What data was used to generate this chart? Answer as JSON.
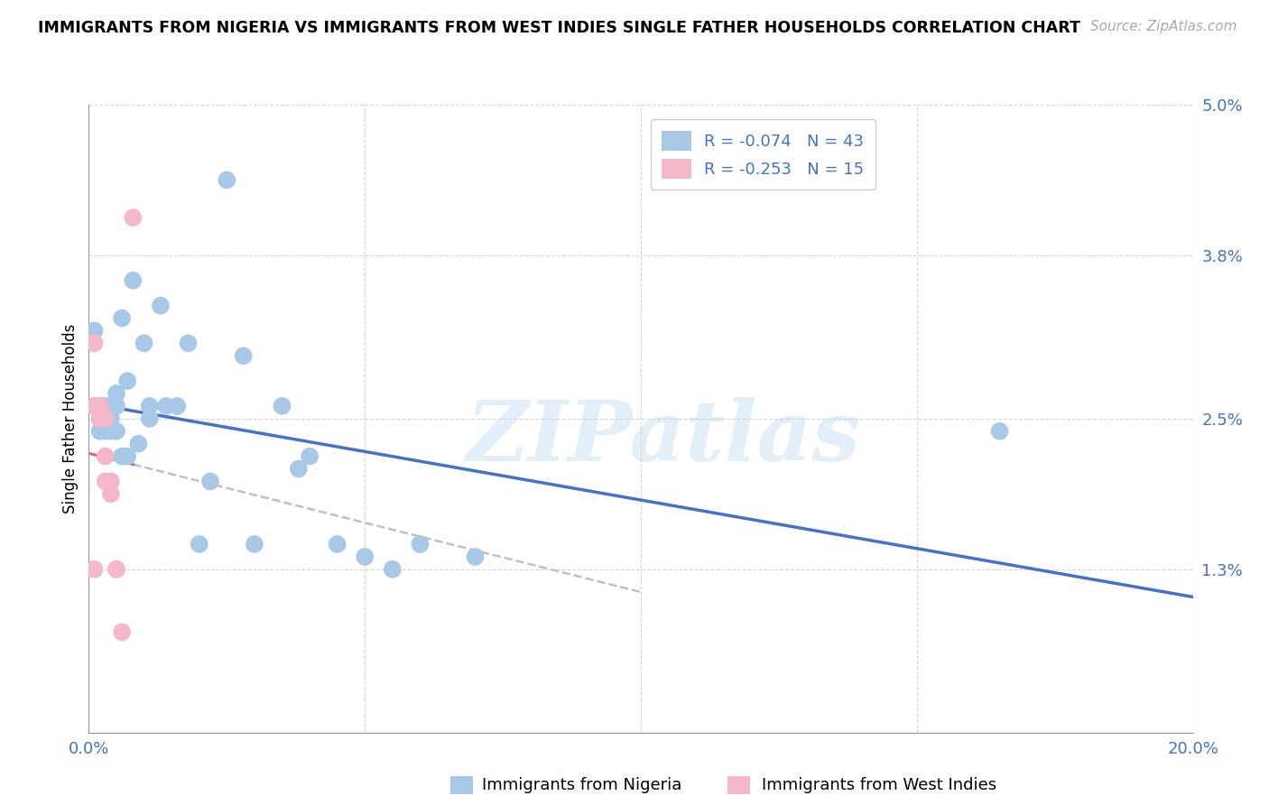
{
  "title": "IMMIGRANTS FROM NIGERIA VS IMMIGRANTS FROM WEST INDIES SINGLE FATHER HOUSEHOLDS CORRELATION CHART",
  "source": "Source: ZipAtlas.com",
  "ylabel": "Single Father Households",
  "xlabel": "",
  "xlim": [
    0.0,
    0.2
  ],
  "ylim": [
    0.0,
    0.05
  ],
  "yticks": [
    0.0,
    0.013,
    0.025,
    0.038,
    0.05
  ],
  "ytick_labels": [
    "",
    "1.3%",
    "2.5%",
    "3.8%",
    "5.0%"
  ],
  "xticks": [
    0.0,
    0.05,
    0.1,
    0.15,
    0.2
  ],
  "xtick_labels": [
    "0.0%",
    "",
    "",
    "",
    "20.0%"
  ],
  "nigeria_R": -0.074,
  "nigeria_N": 43,
  "westindies_R": -0.253,
  "westindies_N": 15,
  "nigeria_color": "#a8c8e8",
  "westindies_color": "#f4b8c8",
  "nigeria_line_color": "#4472c4",
  "westindies_line_color": "#e06080",
  "watermark": "ZIPatlas",
  "nigeria_x": [
    0.001,
    0.001,
    0.002,
    0.002,
    0.002,
    0.002,
    0.003,
    0.003,
    0.003,
    0.003,
    0.004,
    0.004,
    0.004,
    0.005,
    0.005,
    0.005,
    0.006,
    0.006,
    0.007,
    0.007,
    0.008,
    0.009,
    0.01,
    0.011,
    0.011,
    0.013,
    0.014,
    0.016,
    0.018,
    0.02,
    0.022,
    0.025,
    0.028,
    0.03,
    0.035,
    0.038,
    0.04,
    0.045,
    0.05,
    0.055,
    0.06,
    0.07,
    0.165
  ],
  "nigeria_y": [
    0.032,
    0.026,
    0.026,
    0.025,
    0.025,
    0.024,
    0.026,
    0.025,
    0.025,
    0.024,
    0.026,
    0.025,
    0.024,
    0.027,
    0.026,
    0.024,
    0.033,
    0.022,
    0.028,
    0.022,
    0.036,
    0.023,
    0.031,
    0.026,
    0.025,
    0.034,
    0.026,
    0.026,
    0.031,
    0.015,
    0.02,
    0.044,
    0.03,
    0.015,
    0.026,
    0.021,
    0.022,
    0.015,
    0.014,
    0.013,
    0.015,
    0.014,
    0.024
  ],
  "westindies_x": [
    0.001,
    0.001,
    0.001,
    0.002,
    0.002,
    0.002,
    0.003,
    0.003,
    0.003,
    0.004,
    0.004,
    0.005,
    0.005,
    0.006,
    0.008
  ],
  "westindies_y": [
    0.031,
    0.026,
    0.013,
    0.026,
    0.026,
    0.025,
    0.025,
    0.022,
    0.02,
    0.02,
    0.019,
    0.013,
    0.013,
    0.008,
    0.041
  ],
  "background_color": "#ffffff",
  "grid_color": "#cccccc",
  "axis_label_color": "#4472c4",
  "legend_text_color": "#4472c4"
}
